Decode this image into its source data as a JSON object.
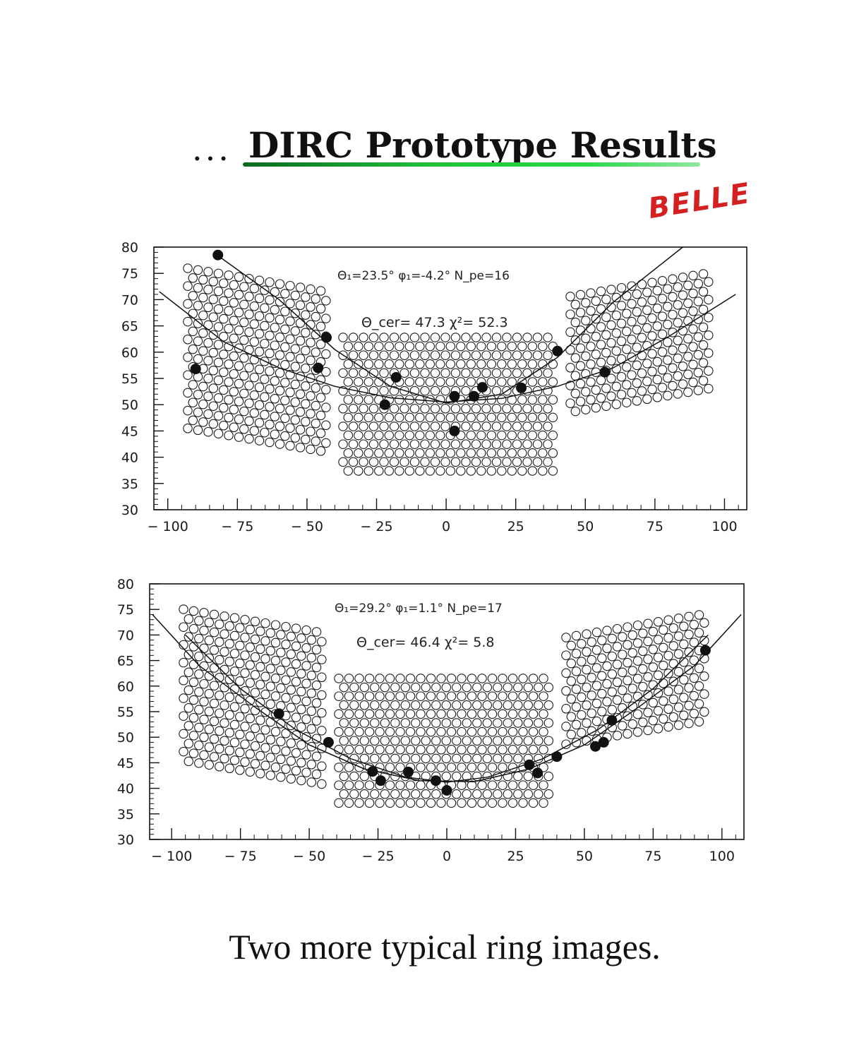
{
  "header": {
    "dots": "...",
    "title": "DIRC Prototype Results",
    "accent_color": "#1fbf3a"
  },
  "stamp": {
    "text": "BELLE",
    "color": "#d42020"
  },
  "caption": "Two more typical ring images.",
  "chart_data": [
    {
      "type": "scatter",
      "title": "",
      "xlabel": "",
      "ylabel": "",
      "xlim": [
        -105,
        108
      ],
      "ylim": [
        30,
        80
      ],
      "x_ticks": [
        "-100",
        "-75",
        "-50",
        "-25",
        "0",
        "25",
        "50",
        "75",
        "100"
      ],
      "y_ticks": [
        "30",
        "35",
        "40",
        "45",
        "50",
        "55",
        "60",
        "65",
        "70",
        "75",
        "80"
      ],
      "grid": false,
      "legend": "none",
      "annotation_line1": "Θ₁=23.5°   φ₁=-4.2°   N_pe=16",
      "annotation_line2": "Θ_cer= 47.3     χ²=  52.3",
      "series": [
        {
          "kind": "hit",
          "points": [
            [
              -82,
              78.5
            ],
            [
              -90,
              56.8
            ],
            [
              -46,
              57
            ],
            [
              -43,
              62.8
            ],
            [
              -22,
              50
            ],
            [
              -18,
              55.2
            ],
            [
              3,
              51.6
            ],
            [
              3,
              45
            ],
            [
              10,
              51.6
            ],
            [
              13,
              53.3
            ],
            [
              27,
              53.2
            ],
            [
              40,
              60.2
            ],
            [
              57,
              56.2
            ]
          ]
        },
        {
          "kind": "fit_ring",
          "points": [
            [
              -81,
              78
            ],
            [
              -60,
              70
            ],
            [
              -40,
              60.5
            ],
            [
              -20,
              53.5
            ],
            [
              0,
              50.3
            ],
            [
              20,
              52
            ],
            [
              40,
              59
            ],
            [
              60,
              69.5
            ],
            [
              85,
              80
            ]
          ]
        },
        {
          "kind": "fit_ring",
          "points": [
            [
              -103,
              71.5
            ],
            [
              -80,
              62
            ],
            [
              -60,
              57
            ],
            [
              -40,
              53.5
            ],
            [
              -20,
              51.3
            ],
            [
              0,
              50.5
            ],
            [
              20,
              51.2
            ],
            [
              40,
              53.5
            ],
            [
              60,
              57
            ],
            [
              80,
              63
            ],
            [
              104,
              71
            ]
          ]
        }
      ]
    },
    {
      "type": "scatter",
      "title": "",
      "xlabel": "",
      "ylabel": "",
      "xlim": [
        -108,
        108
      ],
      "ylim": [
        30,
        80
      ],
      "x_ticks": [
        "-100",
        "-75",
        "-50",
        "-25",
        "0",
        "25",
        "50",
        "75",
        "100"
      ],
      "y_ticks": [
        "30",
        "35",
        "40",
        "45",
        "50",
        "55",
        "60",
        "65",
        "70",
        "75",
        "80"
      ],
      "grid": false,
      "legend": "none",
      "annotation_line1": "Θ₁=29.2°   φ₁=1.1°   N_pe=17",
      "annotation_line2": "Θ_cer= 46.4     χ²=   5.8",
      "series": [
        {
          "kind": "hit",
          "points": [
            [
              -61,
              54.6
            ],
            [
              -43,
              49
            ],
            [
              -27,
              43.3
            ],
            [
              -24,
              41.5
            ],
            [
              -14,
              43.2
            ],
            [
              -4,
              41.5
            ],
            [
              0,
              39.6
            ],
            [
              30,
              44.6
            ],
            [
              33,
              43
            ],
            [
              40,
              46.2
            ],
            [
              54,
              48.2
            ],
            [
              57,
              49
            ],
            [
              60,
              53.3
            ],
            [
              94,
              67
            ]
          ]
        },
        {
          "kind": "fit_ring",
          "points": [
            [
              -107,
              74
            ],
            [
              -90,
              64
            ],
            [
              -70,
              56
            ],
            [
              -50,
              48.5
            ],
            [
              -30,
              43.8
            ],
            [
              -10,
              41.5
            ],
            [
              10,
              41.3
            ],
            [
              30,
              43.8
            ],
            [
              50,
              48.5
            ],
            [
              70,
              56
            ],
            [
              90,
              64
            ],
            [
              107,
              74
            ]
          ]
        },
        {
          "kind": "fit_ring",
          "points": [
            [
              -95,
              70
            ],
            [
              -75,
              59.5
            ],
            [
              -55,
              51.5
            ],
            [
              -35,
              45.8
            ],
            [
              -15,
              42.2
            ],
            [
              0,
              41.2
            ],
            [
              15,
              42.2
            ],
            [
              35,
              45.8
            ],
            [
              55,
              51.5
            ],
            [
              75,
              59.5
            ],
            [
              95,
              70
            ]
          ]
        }
      ]
    }
  ]
}
